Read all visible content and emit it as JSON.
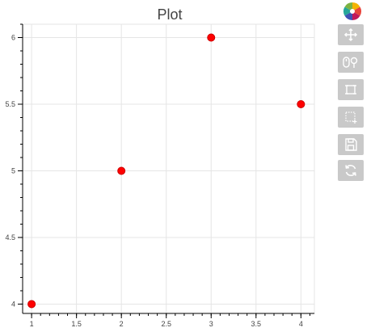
{
  "plot": {
    "title": "Plot"
  },
  "chart_data": {
    "type": "scatter",
    "title": "Plot",
    "xlabel": "",
    "ylabel": "",
    "x": [
      1,
      2,
      3,
      4
    ],
    "y": [
      4,
      5,
      6,
      5.5
    ],
    "xlim": [
      0.9,
      4.15
    ],
    "ylim": [
      3.93,
      6.1
    ],
    "xticks": [
      "1",
      "1.5",
      "2",
      "2.5",
      "3",
      "3.5",
      "4"
    ],
    "yticks": [
      "4",
      "4.5",
      "5",
      "5.5",
      "6"
    ],
    "grid": true,
    "marker_color": "#ff0000",
    "marker_edge_color": "#cc0000"
  },
  "toolbar": {
    "logo": "bokeh-logo-icon",
    "tools": [
      "pan-icon",
      "wheel-zoom-icon",
      "box-zoom-icon",
      "box-select-icon",
      "save-icon",
      "reset-icon"
    ]
  }
}
